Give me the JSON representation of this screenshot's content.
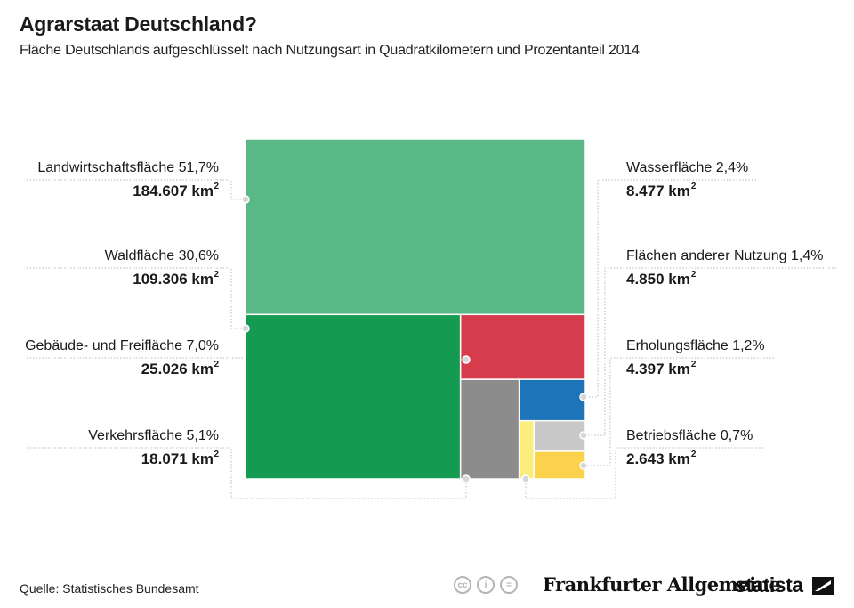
{
  "title": "Agrarstaat Deutschland?",
  "subtitle": "Fläche Deutschlands aufgeschlüsselt nach Nutzungsart in Quadratkilometern und Prozentanteil 2014",
  "source": "Quelle: Statistisches Bundesamt",
  "publisher": "Frankfurter Allgemeine",
  "brand": "statista",
  "cc_icons": [
    "cc-icon",
    "by-icon",
    "nd-icon"
  ],
  "chart_data": {
    "type": "treemap",
    "title": "Agrarstaat Deutschland?",
    "unit": "km²",
    "items": [
      {
        "name": "Landwirtschaftsfläche",
        "percent": "51,7%",
        "value_label": "184.607 km",
        "value": 184607,
        "color": "#5ab886"
      },
      {
        "name": "Waldfläche",
        "percent": "30,6%",
        "value_label": "109.306 km",
        "value": 109306,
        "color": "#159a52"
      },
      {
        "name": "Gebäude- und Freifläche",
        "percent": "7,0%",
        "value_label": "25.026 km",
        "value": 25026,
        "color": "#d63c4b"
      },
      {
        "name": "Verkehrsfläche",
        "percent": "5,1%",
        "value_label": "18.071 km",
        "value": 18071,
        "color": "#8c8c8c"
      },
      {
        "name": "Wasserfläche",
        "percent": "2,4%",
        "value_label": "8.477 km",
        "value": 8477,
        "color": "#1d74b8"
      },
      {
        "name": "Flächen anderer Nutzung",
        "percent": "1,4%",
        "value_label": "4.850 km",
        "value": 4850,
        "color": "#c8c8c8"
      },
      {
        "name": "Erholungsfläche",
        "percent": "1,2%",
        "value_label": "4.397 km",
        "value": 4397,
        "color": "#fad24b"
      },
      {
        "name": "Betriebsfläche",
        "percent": "0,7%",
        "value_label": "2.643 km",
        "value": 2643,
        "color": "#fbec7e"
      }
    ]
  }
}
